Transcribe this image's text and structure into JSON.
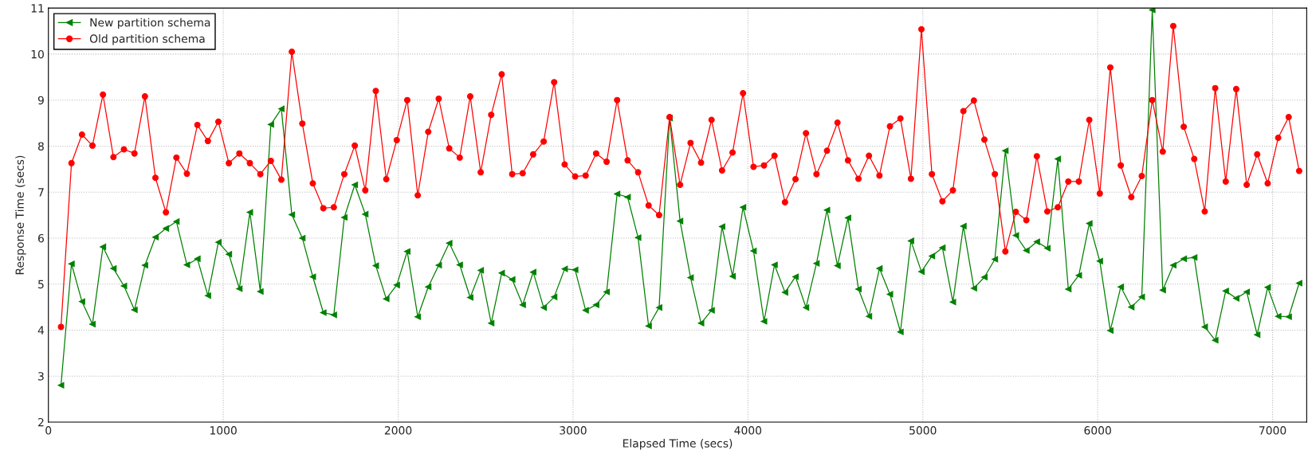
{
  "chart_data": {
    "type": "line",
    "xlabel": "Elapsed Time (secs)",
    "ylabel": "Response Time (secs)",
    "x": [
      72,
      132,
      192,
      252,
      312,
      372,
      432,
      492,
      552,
      612,
      672,
      732,
      792,
      852,
      912,
      972,
      1032,
      1092,
      1152,
      1212,
      1272,
      1332,
      1392,
      1452,
      1512,
      1572,
      1632,
      1692,
      1752,
      1812,
      1872,
      1932,
      1992,
      2052,
      2112,
      2172,
      2232,
      2292,
      2352,
      2412,
      2472,
      2532,
      2592,
      2652,
      2712,
      2772,
      2832,
      2892,
      2952,
      3012,
      3072,
      3132,
      3192,
      3252,
      3312,
      3372,
      3432,
      3492,
      3552,
      3612,
      3672,
      3732,
      3792,
      3852,
      3912,
      3972,
      4032,
      4092,
      4152,
      4212,
      4272,
      4332,
      4392,
      4452,
      4512,
      4572,
      4632,
      4692,
      4752,
      4812,
      4872,
      4932,
      4992,
      5052,
      5112,
      5172,
      5232,
      5292,
      5352,
      5412,
      5472,
      5532,
      5592,
      5652,
      5712,
      5772,
      5832,
      5892,
      5952,
      6012,
      6072,
      6132,
      6192,
      6252,
      6312,
      6372,
      6432,
      6492,
      6552,
      6612,
      6672,
      6732,
      6792,
      6852,
      6912,
      6972,
      7032,
      7092,
      7152
    ],
    "series": [
      {
        "name": "New partition schema",
        "color": "#008000",
        "marker": "triangle",
        "values": [
          2.8,
          5.44,
          4.62,
          4.13,
          5.81,
          5.34,
          4.96,
          4.44,
          5.41,
          6.02,
          6.21,
          6.36,
          5.42,
          5.55,
          4.75,
          5.91,
          5.65,
          4.9,
          6.56,
          4.84,
          8.47,
          8.81,
          6.51,
          6.0,
          5.16,
          4.38,
          4.33,
          6.45,
          7.16,
          6.52,
          5.4,
          4.68,
          4.98,
          5.71,
          4.29,
          4.94,
          5.41,
          5.89,
          5.42,
          4.71,
          5.3,
          4.15,
          5.24,
          5.1,
          4.55,
          5.26,
          4.49,
          4.72,
          5.33,
          5.31,
          4.43,
          4.55,
          4.83,
          6.96,
          6.89,
          6.01,
          4.09,
          4.49,
          8.61,
          6.37,
          5.14,
          4.15,
          4.43,
          6.25,
          5.17,
          6.67,
          5.72,
          4.19,
          5.42,
          4.82,
          5.16,
          4.49,
          5.45,
          6.61,
          5.4,
          6.44,
          4.89,
          4.3,
          5.34,
          4.78,
          3.96,
          5.94,
          5.27,
          5.61,
          5.79,
          4.61,
          6.26,
          4.91,
          5.15,
          5.54,
          7.9,
          6.06,
          5.73,
          5.92,
          5.78,
          7.72,
          4.89,
          5.19,
          6.32,
          5.5,
          3.99,
          4.94,
          4.5,
          4.72,
          10.96,
          4.87,
          5.41,
          5.55,
          5.58,
          4.07,
          3.78,
          4.85,
          4.69,
          4.83,
          3.9,
          4.93,
          4.3,
          4.29,
          5.02
        ]
      },
      {
        "name": "Old partition schema",
        "color": "#ff0000",
        "marker": "circle",
        "values": [
          4.07,
          7.63,
          8.25,
          8.01,
          9.12,
          7.76,
          7.93,
          7.84,
          9.08,
          7.31,
          6.56,
          7.75,
          7.4,
          8.46,
          8.11,
          8.53,
          7.63,
          7.84,
          7.63,
          7.39,
          7.68,
          7.27,
          10.05,
          8.49,
          7.19,
          6.65,
          6.67,
          7.39,
          8.01,
          7.04,
          9.2,
          7.28,
          8.13,
          9.0,
          6.93,
          8.31,
          9.03,
          7.95,
          7.75,
          9.08,
          7.43,
          8.68,
          9.56,
          7.39,
          7.41,
          7.82,
          8.1,
          9.39,
          7.6,
          7.34,
          7.36,
          7.84,
          7.66,
          9.0,
          7.69,
          7.43,
          6.71,
          6.5,
          8.63,
          7.16,
          8.07,
          7.64,
          8.57,
          7.47,
          7.86,
          9.15,
          7.55,
          7.58,
          7.79,
          6.78,
          7.28,
          8.28,
          7.39,
          7.9,
          8.51,
          7.69,
          7.29,
          7.79,
          7.36,
          8.43,
          8.6,
          7.29,
          10.54,
          7.39,
          6.8,
          7.04,
          8.76,
          8.99,
          8.14,
          7.39,
          5.71,
          6.57,
          6.39,
          7.78,
          6.58,
          6.67,
          7.23,
          7.23,
          8.57,
          6.97,
          9.71,
          7.58,
          6.89,
          7.35,
          9.0,
          7.88,
          10.61,
          8.42,
          7.72,
          6.58,
          9.26,
          7.23,
          9.24,
          7.16,
          7.82,
          7.19,
          8.18,
          8.63,
          7.46
        ]
      }
    ],
    "xlim": [
      0,
      7195
    ],
    "xticks": [
      0,
      1000,
      2000,
      3000,
      4000,
      5000,
      6000,
      7000
    ],
    "ylim": [
      2,
      11
    ],
    "yticks": [
      2,
      3,
      4,
      5,
      6,
      7,
      8,
      9,
      10,
      11
    ],
    "grid": true,
    "legend": "top left",
    "line_style": "solid"
  }
}
